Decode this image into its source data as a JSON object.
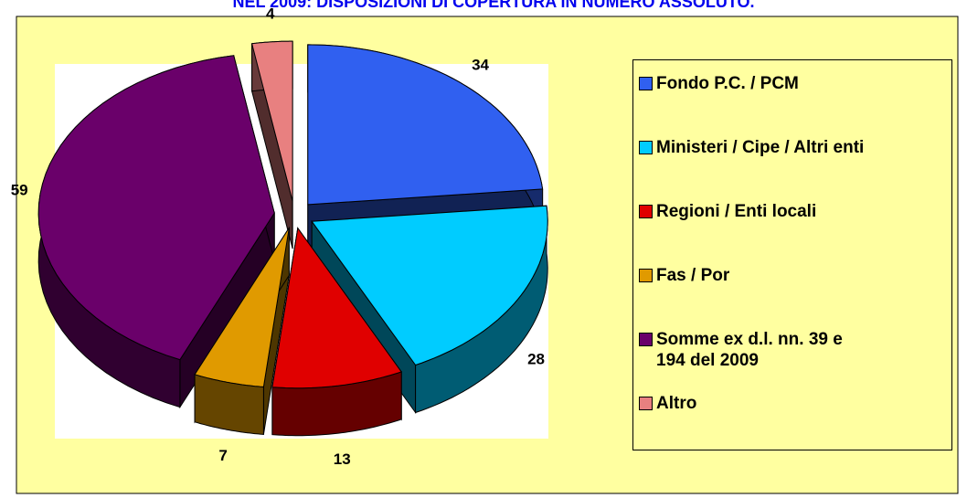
{
  "chart_data": {
    "type": "pie3d",
    "title": "NEL 2009: DISPOSIZIONI DI COPERTURA IN NUMERO ASSOLUTO.",
    "categories": [
      "Fondo P.C. / PCM",
      "Ministeri / Cipe / Altri enti",
      "Regioni / Enti locali",
      "Fas / Por",
      "Somme ex d.l. nn. 39 e\n194 del 2009",
      "Altro"
    ],
    "values": [
      34,
      28,
      13,
      7,
      59,
      4
    ],
    "colors": [
      "#3060f0",
      "#00ccff",
      "#e00000",
      "#e09a00",
      "#6a006a",
      "#e88080"
    ],
    "legend": "right"
  }
}
